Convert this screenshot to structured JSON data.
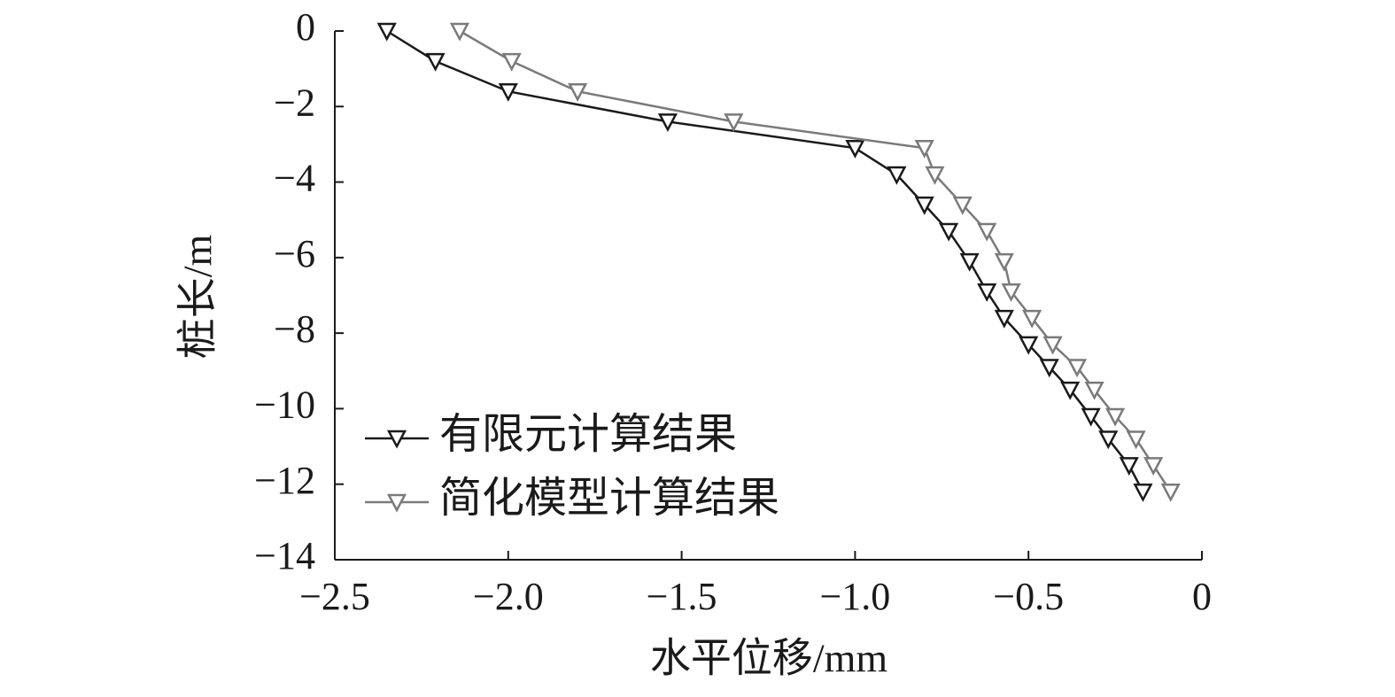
{
  "chart_data": {
    "type": "line",
    "xlabel": "水平位移/mm",
    "ylabel": "桩长/m",
    "xlim": [
      -2.5,
      0
    ],
    "ylim": [
      -14,
      0
    ],
    "xticks": [
      {
        "value": -2.5,
        "label": "−2.5"
      },
      {
        "value": -2.0,
        "label": "−2.0"
      },
      {
        "value": -1.5,
        "label": "−1.5"
      },
      {
        "value": -1.0,
        "label": "−1.0"
      },
      {
        "value": -0.5,
        "label": "−0.5"
      },
      0
    ],
    "yticks": [
      0,
      {
        "value": -2,
        "label": "−2"
      },
      {
        "value": -4,
        "label": "−4"
      },
      {
        "value": -6,
        "label": "−6"
      },
      {
        "value": -8,
        "label": "−8"
      },
      {
        "value": -10,
        "label": "−10"
      },
      {
        "value": -12,
        "label": "−12"
      },
      {
        "value": -14,
        "label": "−14"
      }
    ],
    "grid": false,
    "legend": "lower left",
    "series": [
      {
        "name": "有限元计算结果",
        "color": "#1a1a1a",
        "x": [
          -2.35,
          -2.21,
          -2.0,
          -1.54,
          -1.0,
          -0.88,
          -0.8,
          -0.73,
          -0.67,
          -0.62,
          -0.57,
          -0.5,
          -0.44,
          -0.38,
          -0.32,
          -0.27,
          -0.21,
          -0.17
        ],
        "values": [
          0,
          -0.8,
          -1.6,
          -2.4,
          -3.1,
          -3.8,
          -4.6,
          -5.3,
          -6.1,
          -6.9,
          -7.6,
          -8.3,
          -8.9,
          -9.5,
          -10.2,
          -10.8,
          -11.5,
          -12.2
        ]
      },
      {
        "name": "简化模型计算结果",
        "color": "#7a7a7a",
        "x": [
          -2.14,
          -1.99,
          -1.8,
          -1.35,
          -0.8,
          -0.77,
          -0.69,
          -0.62,
          -0.57,
          -0.55,
          -0.49,
          -0.43,
          -0.36,
          -0.31,
          -0.25,
          -0.19,
          -0.14,
          -0.09
        ],
        "values": [
          0,
          -0.8,
          -1.6,
          -2.4,
          -3.1,
          -3.8,
          -4.6,
          -5.3,
          -6.1,
          -6.9,
          -7.6,
          -8.3,
          -8.9,
          -9.5,
          -10.2,
          -10.8,
          -11.5,
          -12.2
        ]
      }
    ]
  }
}
